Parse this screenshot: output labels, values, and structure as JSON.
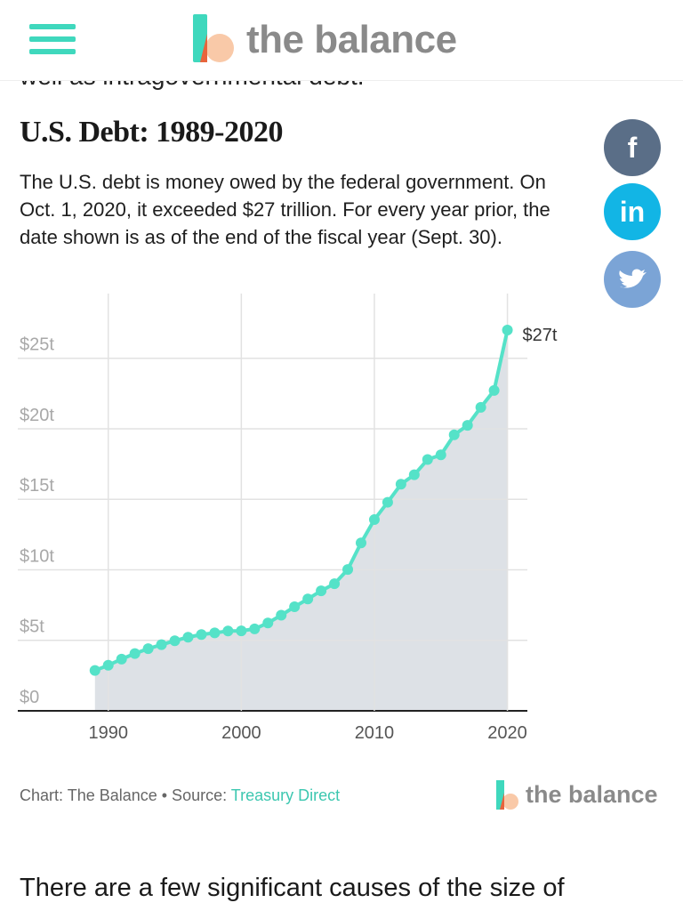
{
  "header": {
    "brand": "the balance"
  },
  "article": {
    "cut_text": "well as intragovernmental debt.",
    "heading": "U.S. Debt: 1989-2020",
    "intro": "The U.S. debt is money owed by the federal government. On Oct. 1, 2020, it exceeded $27 trillion. For every year prior, the date shown is as of the end of the fiscal year (Sept. 30).",
    "next": "There are a few significant causes of the size of"
  },
  "social": [
    "f",
    "in"
  ],
  "chart_data": {
    "type": "line",
    "x": [
      1989,
      1990,
      1991,
      1992,
      1993,
      1994,
      1995,
      1996,
      1997,
      1998,
      1999,
      2000,
      2001,
      2002,
      2003,
      2004,
      2005,
      2006,
      2007,
      2008,
      2009,
      2010,
      2011,
      2012,
      2013,
      2014,
      2015,
      2016,
      2017,
      2018,
      2019,
      2020
    ],
    "values": [
      2.86,
      3.23,
      3.67,
      4.06,
      4.41,
      4.69,
      4.97,
      5.22,
      5.41,
      5.53,
      5.66,
      5.67,
      5.81,
      6.23,
      6.78,
      7.38,
      7.93,
      8.51,
      9.01,
      10.02,
      11.91,
      13.56,
      14.79,
      16.07,
      16.74,
      17.82,
      18.15,
      19.57,
      20.24,
      21.52,
      22.72,
      27
    ],
    "value_labels": [
      null,
      null,
      null,
      null,
      null,
      null,
      null,
      null,
      null,
      null,
      null,
      null,
      null,
      null,
      null,
      null,
      null,
      null,
      null,
      null,
      null,
      null,
      null,
      null,
      null,
      null,
      null,
      null,
      null,
      null,
      null,
      "$27t"
    ],
    "color": "#55e2c8",
    "area_color": "#dde1e6",
    "xlim": [
      1983.2,
      2021.5
    ],
    "xticks": [
      1990,
      2000,
      2010,
      2020
    ],
    "ylim": [
      0,
      28.2
    ],
    "yticks": [
      {
        "value": 0,
        "label": "$0"
      },
      {
        "value": 5,
        "label": "$5t"
      },
      {
        "value": 10,
        "label": "$10t"
      },
      {
        "value": 15,
        "label": "$15t"
      },
      {
        "value": 20,
        "label": "$20t"
      },
      {
        "value": 25,
        "label": "$25t"
      }
    ],
    "grid": true
  },
  "credit": {
    "chart": "Chart: The Balance • Source:",
    "source": "Treasury Direct",
    "logo": "the balance"
  }
}
